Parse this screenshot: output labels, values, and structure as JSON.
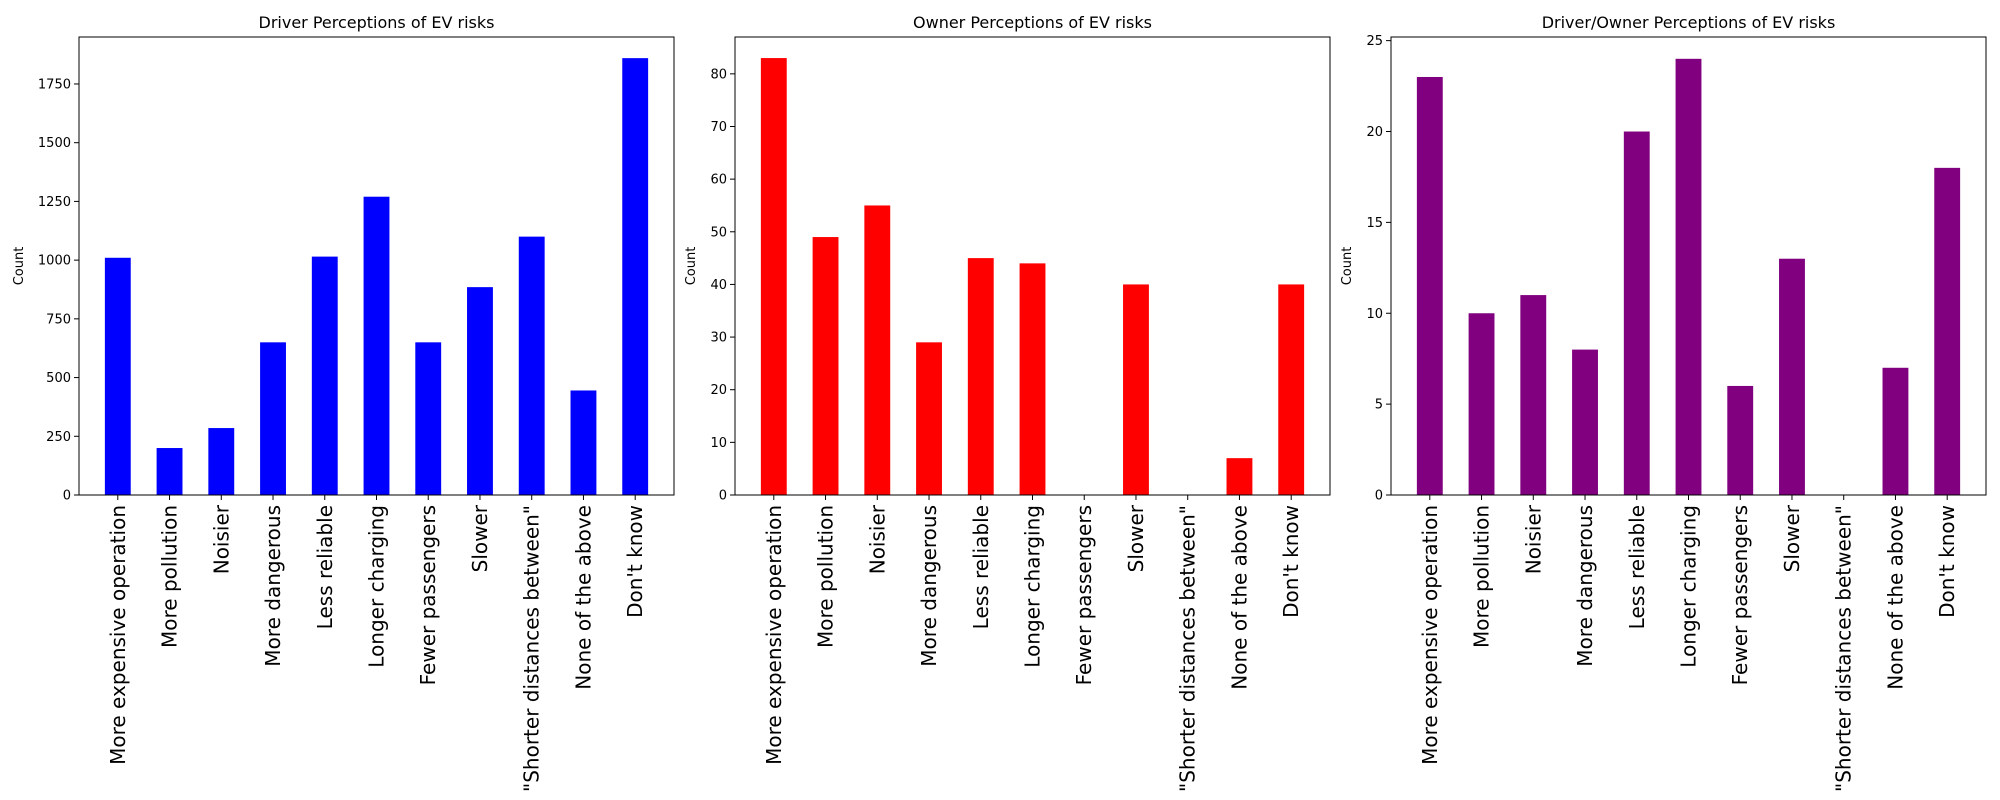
{
  "chart_data": [
    {
      "type": "bar",
      "title": "Driver Perceptions of EV risks",
      "ylabel": "Count",
      "xlabel": "",
      "color": "#0000ff",
      "ylim": [
        0,
        1950
      ],
      "yticks": [
        0,
        250,
        500,
        750,
        1000,
        1250,
        1500,
        1750
      ],
      "categories": [
        "More expensive operation",
        "More pollution",
        "Noisier",
        "More dangerous",
        "Less reliable",
        "Longer charging",
        "Fewer passengers",
        "Slower",
        "\"Shorter distances between\"",
        "None of the above",
        "Don't know"
      ],
      "values": [
        1010,
        200,
        285,
        650,
        1015,
        1270,
        650,
        885,
        1100,
        445,
        1860
      ]
    },
    {
      "type": "bar",
      "title": "Owner Perceptions of EV risks",
      "ylabel": "Count",
      "xlabel": "",
      "color": "#ff0000",
      "ylim": [
        0,
        87
      ],
      "yticks": [
        0,
        10,
        20,
        30,
        40,
        50,
        60,
        70,
        80
      ],
      "categories": [
        "More expensive operation",
        "More pollution",
        "Noisier",
        "More dangerous",
        "Less reliable",
        "Longer charging",
        "Fewer passengers",
        "Slower",
        "\"Shorter distances between\"",
        "None of the above",
        "Don't know"
      ],
      "values": [
        83,
        49,
        55,
        29,
        45,
        44,
        0,
        40,
        0,
        7,
        40
      ]
    },
    {
      "type": "bar",
      "title": "Driver/Owner Perceptions of EV risks",
      "ylabel": "Count",
      "xlabel": "",
      "color": "#800080",
      "ylim": [
        0,
        25.2
      ],
      "yticks": [
        0,
        5,
        10,
        15,
        20,
        25
      ],
      "categories": [
        "More expensive operation",
        "More pollution",
        "Noisier",
        "More dangerous",
        "Less reliable",
        "Longer charging",
        "Fewer passengers",
        "Slower",
        "\"Shorter distances between\"",
        "None of the above",
        "Don't know"
      ],
      "values": [
        23,
        10,
        11,
        8,
        20,
        24,
        6,
        13,
        0,
        7,
        18
      ]
    }
  ]
}
